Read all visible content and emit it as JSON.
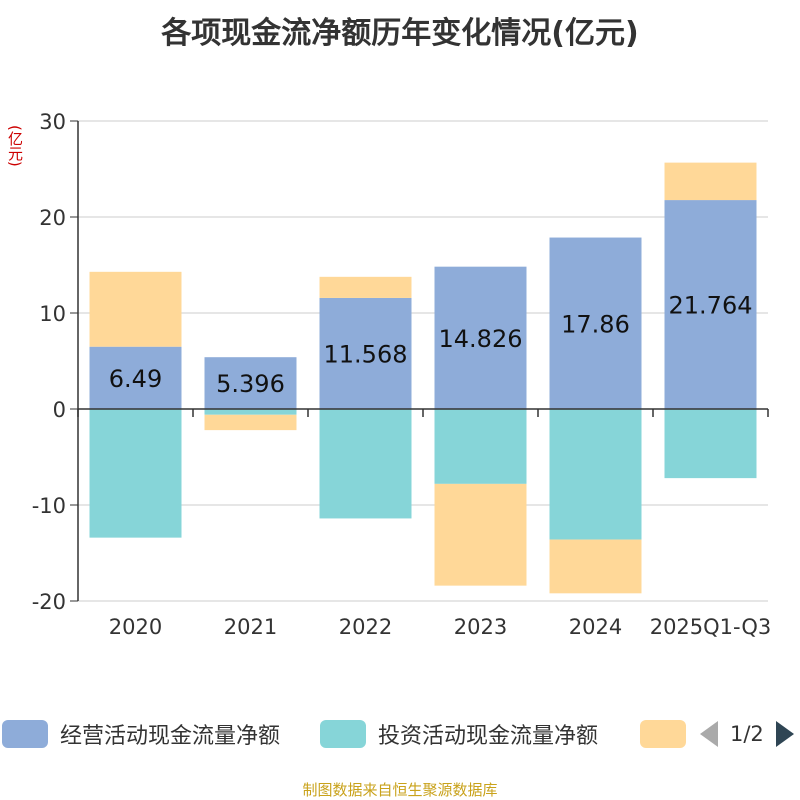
{
  "chart_data": {
    "type": "bar",
    "stacked": true,
    "title": "各项现金流净额历年变化情况(亿元)",
    "ylabel": "(亿元)",
    "xlabel": "",
    "ylim": [
      -20,
      30
    ],
    "yticks": [
      30,
      20,
      10,
      0,
      -10,
      -20
    ],
    "categories": [
      "2020",
      "2021",
      "2022",
      "2023",
      "2024",
      "2025Q1-Q3"
    ],
    "series": [
      {
        "name": "经营活动现金流量净额",
        "color": "#8eacd9",
        "values": [
          6.49,
          5.396,
          11.568,
          14.826,
          17.86,
          21.764
        ],
        "labels": [
          "6.49",
          "5.396",
          "11.568",
          "14.826",
          "17.86",
          "21.764"
        ]
      },
      {
        "name": "投资活动现金流量净额",
        "color": "#86d5d8",
        "values": [
          -13.4,
          -0.6,
          -11.4,
          -7.8,
          -13.6,
          -7.2
        ]
      },
      {
        "name": "",
        "color": "#ffd898",
        "values": [
          7.8,
          -1.6,
          2.2,
          -10.6,
          -5.6,
          3.9
        ]
      }
    ],
    "legend_position": "bottom"
  },
  "legend": {
    "page_indicator": "1/2"
  },
  "source_note": "制图数据来自恒生聚源数据库"
}
